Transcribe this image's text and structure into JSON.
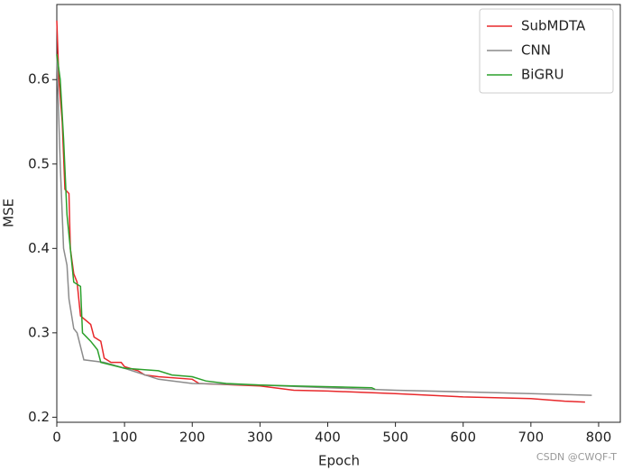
{
  "chart_data": {
    "type": "line",
    "xlabel": "Epoch",
    "ylabel": "MSE",
    "xlim": [
      0,
      832
    ],
    "ylim": [
      0.194,
      0.689
    ],
    "xticks": [
      0,
      100,
      200,
      300,
      400,
      500,
      600,
      700,
      800
    ],
    "yticks": [
      0.2,
      0.3,
      0.4,
      0.5,
      0.6
    ],
    "legend": "upper right",
    "annotation": "CSDN @CWQF-T",
    "series": [
      {
        "name": "SubMDTA",
        "color": "#e8282b",
        "x": [
          0,
          3,
          8,
          12,
          18,
          20,
          25,
          30,
          35,
          50,
          55,
          65,
          70,
          80,
          95,
          100,
          120,
          130,
          150,
          200,
          210,
          300,
          350,
          400,
          500,
          600,
          700,
          750,
          780
        ],
        "values": [
          0.67,
          0.6,
          0.55,
          0.47,
          0.465,
          0.4,
          0.37,
          0.36,
          0.32,
          0.31,
          0.295,
          0.29,
          0.27,
          0.265,
          0.265,
          0.26,
          0.255,
          0.25,
          0.248,
          0.245,
          0.24,
          0.237,
          0.232,
          0.231,
          0.228,
          0.224,
          0.222,
          0.219,
          0.218
        ]
      },
      {
        "name": "CNN",
        "color": "#8c8c8c",
        "x": [
          0,
          5,
          10,
          15,
          18,
          25,
          30,
          40,
          70,
          100,
          150,
          200,
          300,
          400,
          500,
          600,
          700,
          790
        ],
        "values": [
          0.63,
          0.5,
          0.4,
          0.38,
          0.34,
          0.305,
          0.3,
          0.268,
          0.265,
          0.258,
          0.245,
          0.24,
          0.238,
          0.235,
          0.232,
          0.23,
          0.228,
          0.226
        ]
      },
      {
        "name": "BiGRU",
        "color": "#2ca02c",
        "x": [
          0,
          5,
          10,
          15,
          20,
          25,
          35,
          38,
          50,
          60,
          65,
          80,
          100,
          150,
          170,
          200,
          220,
          250,
          300,
          350,
          465,
          470
        ],
        "values": [
          0.63,
          0.6,
          0.53,
          0.44,
          0.4,
          0.36,
          0.355,
          0.3,
          0.29,
          0.28,
          0.265,
          0.262,
          0.258,
          0.255,
          0.25,
          0.248,
          0.243,
          0.24,
          0.238,
          0.237,
          0.235,
          0.233
        ]
      }
    ]
  }
}
